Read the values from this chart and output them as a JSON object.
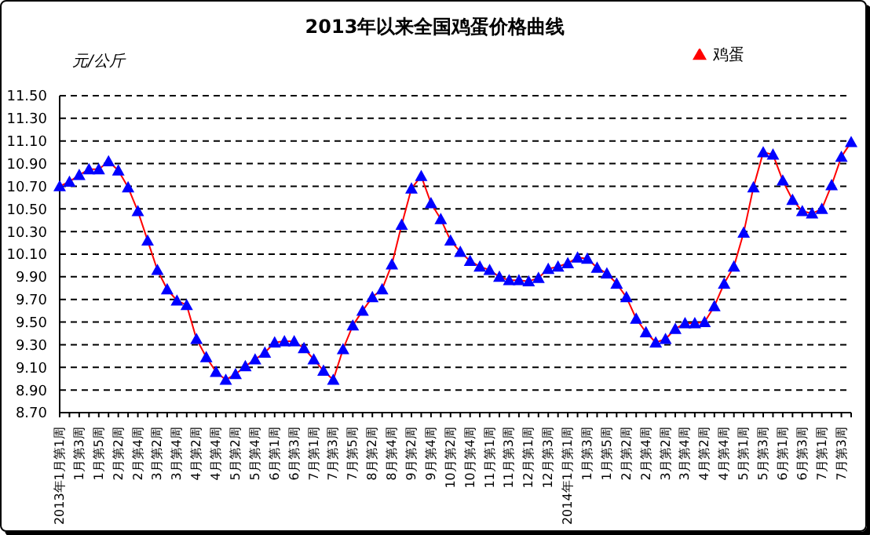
{
  "chart_data": {
    "type": "line",
    "title": "2013年以来全国鸡蛋价格曲线",
    "ylabel": "元/公斤",
    "categories": [
      "2013年1月第1周",
      null,
      "1月第3周",
      null,
      "1月第5周",
      null,
      "2月第2周",
      null,
      "2月第4周",
      null,
      "3月第2周",
      null,
      "3月第4周",
      null,
      "4月第2周",
      null,
      "4月第4周",
      null,
      "5月第2周",
      null,
      "5月第4周",
      null,
      "6月第1周",
      null,
      "6月第3周",
      null,
      "7月第1周",
      null,
      "7月第3周",
      null,
      "7月第5周",
      null,
      "8月第2周",
      null,
      "8月第4周",
      null,
      "9月第2周",
      null,
      "9月第4周",
      null,
      "10月第2周",
      null,
      "10月第4周",
      null,
      "11月第1周",
      null,
      "11月第3周",
      null,
      "12月第1周",
      null,
      "12月第3周",
      null,
      "2014年1月第1周",
      null,
      "1月第3周",
      null,
      "1月第5周",
      null,
      "2月第2周",
      null,
      "2月第4周",
      null,
      "3月第2周",
      null,
      "3月第4周",
      null,
      "4月第2周",
      null,
      "4月第4周",
      null,
      "5月第1周",
      null,
      "5月第3周",
      null,
      "6月第1周",
      null,
      "6月第3周",
      null,
      "7月第1周",
      null,
      "7月第3周",
      null
    ],
    "series": [
      {
        "name": "鸡蛋",
        "color": "#0000ff",
        "values": [
          10.7,
          10.74,
          10.8,
          10.85,
          10.85,
          10.92,
          10.84,
          10.69,
          10.48,
          10.22,
          9.96,
          9.79,
          9.69,
          9.65,
          9.35,
          9.19,
          9.06,
          8.99,
          9.04,
          9.11,
          9.17,
          9.23,
          9.32,
          9.33,
          9.33,
          9.27,
          9.17,
          9.07,
          8.99,
          9.26,
          9.47,
          9.6,
          9.72,
          9.79,
          10.01,
          10.36,
          10.68,
          10.79,
          10.55,
          10.41,
          10.22,
          10.12,
          10.04,
          9.99,
          9.96,
          9.9,
          9.87,
          9.87,
          9.86,
          9.89,
          9.97,
          9.99,
          10.02,
          10.07,
          10.06,
          9.98,
          9.93,
          9.84,
          9.72,
          9.53,
          9.41,
          9.32,
          9.35,
          9.44,
          9.49,
          9.49,
          9.5,
          9.64,
          9.84,
          9.99,
          10.29,
          10.69,
          11.0,
          10.98,
          10.75,
          10.58,
          10.48,
          10.46,
          10.5,
          10.71,
          10.96,
          11.09
        ]
      }
    ],
    "ylim": [
      8.7,
      11.5
    ],
    "yticks": [
      {
        "value": 8.7,
        "label": "8.70"
      },
      {
        "value": 8.9,
        "label": "8.90"
      },
      {
        "value": 9.1,
        "label": "9.10"
      },
      {
        "value": 9.3,
        "label": "9.30"
      },
      {
        "value": 9.5,
        "label": "9.50"
      },
      {
        "value": 9.7,
        "label": "9.70"
      },
      {
        "value": 9.9,
        "label": "9.90"
      },
      {
        "value": 10.1,
        "label": "10.10"
      },
      {
        "value": 10.3,
        "label": "10.30"
      },
      {
        "value": 10.5,
        "label": "10.50"
      },
      {
        "value": 10.7,
        "label": "10.70"
      },
      {
        "value": 10.9,
        "label": "10.90"
      },
      {
        "value": 11.1,
        "label": "11.10"
      },
      {
        "value": 11.3,
        "label": "11.30"
      },
      {
        "value": 11.5,
        "label": "11.50"
      }
    ],
    "grid": "y",
    "legend": "top right",
    "marker": "triangle",
    "line_style": "solid"
  }
}
